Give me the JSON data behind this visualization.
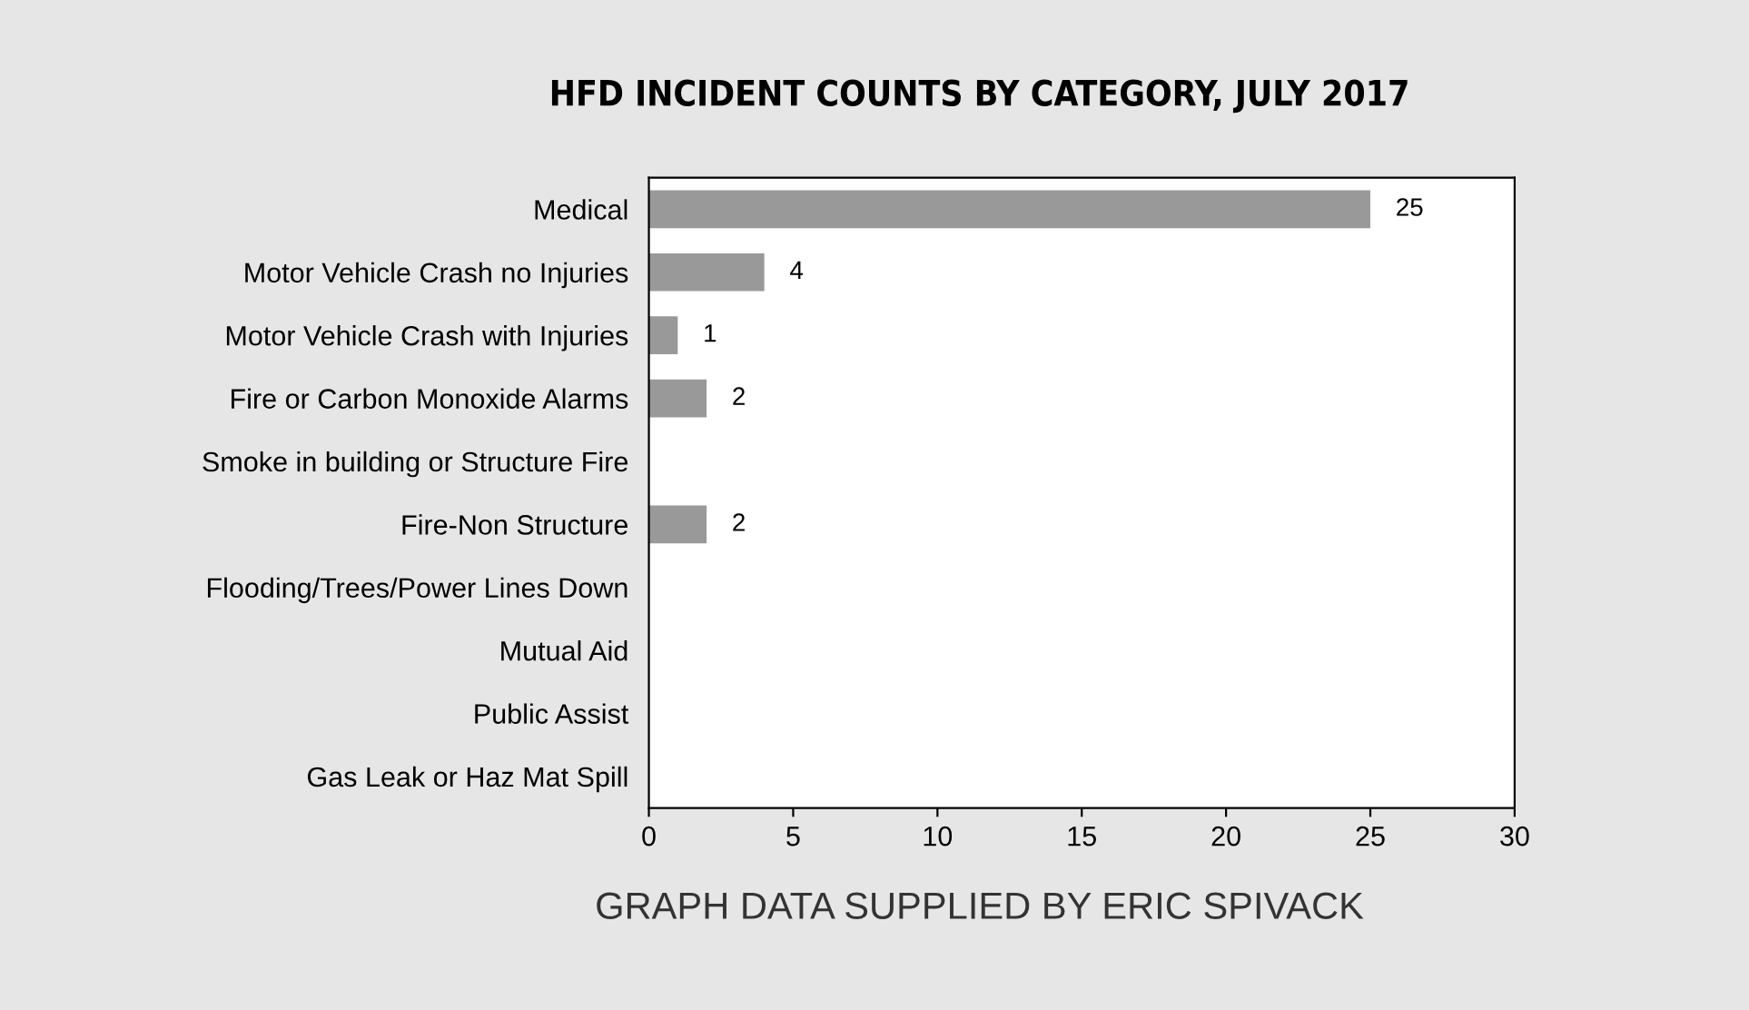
{
  "chart_data": {
    "type": "bar",
    "orientation": "horizontal",
    "title": "HFD INCIDENT COUNTS BY CATEGORY, JULY 2017",
    "categories": [
      "Medical",
      "Motor Vehicle Crash no Injuries",
      "Motor Vehicle Crash with Injuries",
      "Fire or Carbon Monoxide Alarms",
      "Smoke in building or Structure Fire",
      "Fire-Non Structure",
      "Flooding/Trees/Power Lines Down",
      "Mutual Aid",
      "Public Assist",
      "Gas Leak or Haz Mat Spill"
    ],
    "values": [
      25,
      4,
      1,
      2,
      0,
      2,
      0,
      0,
      0,
      0
    ],
    "value_labels": [
      "25",
      "4",
      "1",
      "2",
      null,
      "2",
      null,
      null,
      null,
      null
    ],
    "color": "#999999",
    "xlim": [
      0,
      30
    ],
    "xticks": [
      0,
      5,
      10,
      15,
      20,
      25,
      30
    ],
    "grid": false,
    "annotations": [
      "GRAPH DATA SUPPLIED BY ERIC SPIVACK"
    ]
  }
}
